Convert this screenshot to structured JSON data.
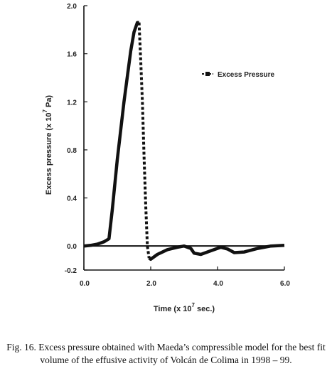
{
  "chart_data": {
    "type": "line",
    "title": "",
    "xlabel": {
      "prefix": "Time (x 10",
      "exp": "7",
      "suffix": " sec.)"
    },
    "ylabel": {
      "prefix": "Excess pressure (x 10",
      "exp": "7",
      "suffix": " Pa)"
    },
    "xlim": [
      0,
      6
    ],
    "ylim": [
      -0.2,
      2.0
    ],
    "xticks": [
      0,
      2,
      4,
      6
    ],
    "xtick_labels": [
      "0.0",
      "2.0",
      "4.0",
      "6.0"
    ],
    "yticks": [
      -0.2,
      0,
      0.4,
      0.8,
      1.2,
      1.6,
      2.0
    ],
    "ytick_labels": [
      "-0.2",
      "0.0",
      "0.4",
      "0.8",
      "1.2",
      "1.6",
      "2.0"
    ],
    "legend_position": "top-right",
    "grid": false,
    "series": [
      {
        "name": "Excess Pressure",
        "color": "#111111",
        "x": [
          0,
          0.2,
          0.4,
          0.6,
          0.75,
          0.85,
          1.0,
          1.2,
          1.4,
          1.5,
          1.6,
          1.65,
          1.7,
          1.75,
          1.8,
          1.85,
          1.9,
          1.95,
          2.0,
          2.2,
          2.5,
          2.8,
          3.0,
          3.2,
          3.3,
          3.5,
          3.8,
          4.1,
          4.3,
          4.5,
          4.8,
          5.2,
          5.6,
          6.0
        ],
        "y": [
          0.0,
          0.005,
          0.015,
          0.035,
          0.06,
          0.3,
          0.72,
          1.2,
          1.62,
          1.78,
          1.86,
          1.86,
          1.55,
          1.2,
          0.75,
          0.35,
          0.0,
          -0.1,
          -0.11,
          -0.07,
          -0.03,
          -0.01,
          0.0,
          -0.02,
          -0.06,
          -0.07,
          -0.04,
          -0.01,
          -0.025,
          -0.055,
          -0.05,
          -0.02,
          0.0,
          0.005
        ]
      }
    ],
    "zero_line": 0
  },
  "caption": "Fig. 16. Excess pressure obtained with Maeda’s compressible model for the best fit volume of the effusive activity of Volcán de Colima in 1998 – 99."
}
